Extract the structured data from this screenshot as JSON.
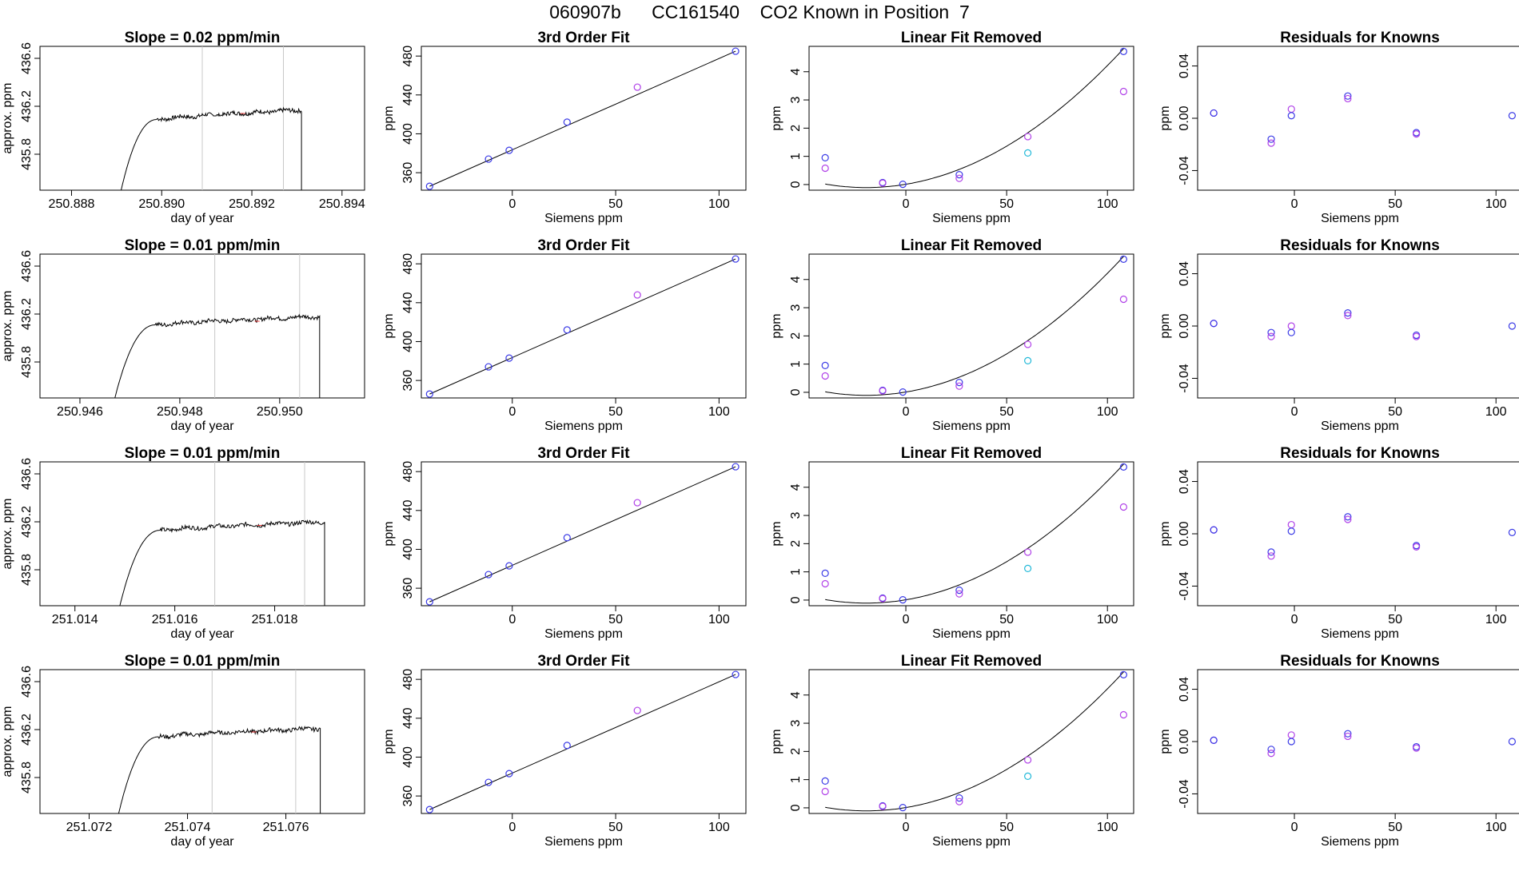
{
  "main_title": "060907b      CC161540    CO2 Known in Position  7",
  "colors": {
    "line": "#000000",
    "grid": "#c8c8c8",
    "blue": "#3a3ae6",
    "violet": "#b040e8",
    "cyan": "#20b8d8",
    "redmark": "#e03030"
  },
  "chart_data": [
    {
      "type": "line",
      "panel": "timeseries",
      "row": 1,
      "title": "Slope =  0.02  ppm/min",
      "xlabel": "day of year",
      "ylabel": "approx. ppm",
      "xlim": [
        250.8873,
        250.8945
      ],
      "ylim": [
        435.5,
        436.7
      ],
      "xticks": [
        250.888,
        250.89,
        250.892,
        250.894
      ],
      "xtick_labels": [
        "250.888",
        "250.890",
        "250.892",
        "250.894"
      ],
      "yticks": [
        435.8,
        436.2,
        436.6
      ],
      "ytick_labels": [
        "435.8",
        "436.2",
        "436.6"
      ],
      "vlines": [
        250.8909,
        250.8927
      ],
      "start": 250.8891,
      "end": 250.8931,
      "plateau": [
        436.09,
        436.14,
        436.17
      ],
      "trace_range": [
        435.5,
        436.17
      ]
    },
    {
      "type": "line",
      "panel": "timeseries",
      "row": 2,
      "title": "Slope =  0.01  ppm/min",
      "xlabel": "day of year",
      "ylabel": "approx. ppm",
      "xlim": [
        250.9452,
        250.9517
      ],
      "ylim": [
        435.5,
        436.7
      ],
      "xticks": [
        250.946,
        250.948,
        250.95
      ],
      "xtick_labels": [
        "250.946",
        "250.948",
        "250.950"
      ],
      "yticks": [
        435.8,
        436.2,
        436.6
      ],
      "ytick_labels": [
        "435.8",
        "436.2",
        "436.6"
      ],
      "vlines": [
        250.9487,
        250.9504
      ],
      "start": 250.9467,
      "end": 250.9508,
      "plateau": [
        436.11,
        436.14,
        436.18
      ],
      "trace_range": [
        435.5,
        436.18
      ]
    },
    {
      "type": "line",
      "panel": "timeseries",
      "row": 3,
      "title": "Slope =  0.01  ppm/min",
      "xlabel": "day of year",
      "ylabel": "approx. ppm",
      "xlim": [
        251.0133,
        251.0198
      ],
      "ylim": [
        435.5,
        436.7
      ],
      "xticks": [
        251.014,
        251.016,
        251.018
      ],
      "xtick_labels": [
        "251.014",
        "251.016",
        "251.018"
      ],
      "yticks": [
        435.8,
        436.2,
        436.6
      ],
      "ytick_labels": [
        "435.8",
        "436.2",
        "436.6"
      ],
      "vlines": [
        251.0168,
        251.0186
      ],
      "start": 251.0149,
      "end": 251.019,
      "plateau": [
        436.13,
        436.17,
        436.2
      ],
      "trace_range": [
        435.5,
        436.2
      ]
    },
    {
      "type": "line",
      "panel": "timeseries",
      "row": 4,
      "title": "Slope =  0.01  ppm/min",
      "xlabel": "day of year",
      "ylabel": "approx. ppm",
      "xlim": [
        251.071,
        251.0776
      ],
      "ylim": [
        435.5,
        436.7
      ],
      "xticks": [
        251.072,
        251.074,
        251.076
      ],
      "xtick_labels": [
        "251.072",
        "251.074",
        "251.076"
      ],
      "yticks": [
        435.8,
        436.2,
        436.6
      ],
      "ytick_labels": [
        "435.8",
        "436.2",
        "436.6"
      ],
      "vlines": [
        251.0745,
        251.0762
      ],
      "start": 251.0726,
      "end": 251.0767,
      "plateau": [
        436.14,
        436.18,
        436.21
      ],
      "trace_range": [
        435.5,
        436.21
      ]
    },
    {
      "type": "scatter",
      "panel": "fit",
      "row": 1,
      "title": "3rd Order Fit",
      "xlabel": "Siemens ppm",
      "ylabel": "ppm",
      "xlim": [
        -44,
        113
      ],
      "ylim": [
        342,
        490
      ],
      "xticks": [
        0,
        50,
        100
      ],
      "xtick_labels": [
        "0",
        "50",
        "100"
      ],
      "yticks": [
        360,
        400,
        440,
        480
      ],
      "ytick_labels": [
        "360",
        "400",
        "440",
        "480"
      ],
      "x": [
        -40,
        -11.5,
        -1.5,
        26.5,
        60.5,
        108
      ],
      "y": [
        346,
        374,
        383,
        412,
        448,
        485
      ],
      "colors": [
        "blue",
        "blue",
        "blue",
        "blue",
        "violet",
        "blue"
      ],
      "curve": {
        "kind": "line",
        "x": [
          -40,
          108
        ],
        "y": [
          346,
          485
        ]
      }
    },
    {
      "type": "scatter",
      "panel": "fit",
      "row": 2,
      "title": "3rd Order Fit",
      "xlabel": "Siemens ppm",
      "ylabel": "ppm",
      "xlim": [
        -44,
        113
      ],
      "ylim": [
        342,
        490
      ],
      "xticks": [
        0,
        50,
        100
      ],
      "xtick_labels": [
        "0",
        "50",
        "100"
      ],
      "yticks": [
        360,
        400,
        440,
        480
      ],
      "ytick_labels": [
        "360",
        "400",
        "440",
        "480"
      ],
      "x": [
        -40,
        -11.5,
        -1.5,
        26.5,
        60.5,
        108
      ],
      "y": [
        346,
        374,
        383,
        412,
        448,
        485
      ],
      "colors": [
        "blue",
        "blue",
        "blue",
        "blue",
        "violet",
        "blue"
      ],
      "curve": {
        "kind": "line",
        "x": [
          -40,
          108
        ],
        "y": [
          346,
          485
        ]
      }
    },
    {
      "type": "scatter",
      "panel": "fit",
      "row": 3,
      "title": "3rd Order Fit",
      "xlabel": "Siemens ppm",
      "ylabel": "ppm",
      "xlim": [
        -44,
        113
      ],
      "ylim": [
        342,
        490
      ],
      "xticks": [
        0,
        50,
        100
      ],
      "xtick_labels": [
        "0",
        "50",
        "100"
      ],
      "yticks": [
        360,
        400,
        440,
        480
      ],
      "ytick_labels": [
        "360",
        "400",
        "440",
        "480"
      ],
      "x": [
        -40,
        -11.5,
        -1.5,
        26.5,
        60.5,
        108
      ],
      "y": [
        346,
        374,
        383,
        412,
        448,
        485
      ],
      "colors": [
        "blue",
        "blue",
        "blue",
        "blue",
        "violet",
        "blue"
      ],
      "curve": {
        "kind": "line",
        "x": [
          -40,
          108
        ],
        "y": [
          346,
          485
        ]
      }
    },
    {
      "type": "scatter",
      "panel": "fit",
      "row": 4,
      "title": "3rd Order Fit",
      "xlabel": "Siemens ppm",
      "ylabel": "ppm",
      "xlim": [
        -44,
        113
      ],
      "ylim": [
        342,
        490
      ],
      "xticks": [
        0,
        50,
        100
      ],
      "xtick_labels": [
        "0",
        "50",
        "100"
      ],
      "yticks": [
        360,
        400,
        440,
        480
      ],
      "ytick_labels": [
        "360",
        "400",
        "440",
        "480"
      ],
      "x": [
        -40,
        -11.5,
        -1.5,
        26.5,
        60.5,
        108
      ],
      "y": [
        346,
        374,
        383,
        412,
        448,
        485
      ],
      "colors": [
        "blue",
        "blue",
        "blue",
        "blue",
        "violet",
        "blue"
      ],
      "curve": {
        "kind": "line",
        "x": [
          -40,
          108
        ],
        "y": [
          346,
          485
        ]
      }
    },
    {
      "type": "scatter",
      "panel": "linear-removed",
      "row": 1,
      "title": "Linear Fit Removed",
      "xlabel": "Siemens ppm",
      "ylabel": "ppm",
      "xlim": [
        -48,
        113
      ],
      "ylim": [
        -0.2,
        4.9
      ],
      "xticks": [
        0,
        50,
        100
      ],
      "xtick_labels": [
        "0",
        "50",
        "100"
      ],
      "yticks": [
        0,
        1,
        2,
        3,
        4
      ],
      "ytick_labels": [
        "0",
        "1",
        "2",
        "3",
        "4"
      ],
      "x": [
        -40,
        -40,
        -11.5,
        -11.5,
        -1.5,
        26.5,
        26.5,
        60.5,
        60.5,
        108,
        108
      ],
      "y": [
        0.95,
        0.58,
        0.07,
        0.05,
        0.01,
        0.35,
        0.22,
        1.7,
        1.12,
        4.72,
        3.3
      ],
      "colors": [
        "blue",
        "violet",
        "blue",
        "violet",
        "blue",
        "blue",
        "violet",
        "violet",
        "cyan",
        "blue",
        "violet"
      ],
      "curve": {
        "kind": "poly",
        "coef": [
          0.01,
          0.0119,
          0.000302
        ],
        "from": -40,
        "to": 108
      }
    },
    {
      "type": "scatter",
      "panel": "linear-removed",
      "row": 2,
      "title": "Linear Fit Removed",
      "xlabel": "Siemens ppm",
      "ylabel": "ppm",
      "xlim": [
        -48,
        113
      ],
      "ylim": [
        -0.2,
        4.9
      ],
      "xticks": [
        0,
        50,
        100
      ],
      "xtick_labels": [
        "0",
        "50",
        "100"
      ],
      "yticks": [
        0,
        1,
        2,
        3,
        4
      ],
      "ytick_labels": [
        "0",
        "1",
        "2",
        "3",
        "4"
      ],
      "x": [
        -40,
        -40,
        -11.5,
        -11.5,
        -1.5,
        26.5,
        26.5,
        60.5,
        60.5,
        108,
        108
      ],
      "y": [
        0.95,
        0.58,
        0.07,
        0.05,
        0.01,
        0.35,
        0.22,
        1.7,
        1.12,
        4.72,
        3.3
      ],
      "colors": [
        "blue",
        "violet",
        "blue",
        "violet",
        "blue",
        "blue",
        "violet",
        "violet",
        "cyan",
        "blue",
        "violet"
      ],
      "curve": {
        "kind": "poly",
        "coef": [
          0.01,
          0.0119,
          0.000302
        ],
        "from": -40,
        "to": 108
      }
    },
    {
      "type": "scatter",
      "panel": "linear-removed",
      "row": 3,
      "title": "Linear Fit Removed",
      "xlabel": "Siemens ppm",
      "ylabel": "ppm",
      "xlim": [
        -48,
        113
      ],
      "ylim": [
        -0.2,
        4.9
      ],
      "xticks": [
        0,
        50,
        100
      ],
      "xtick_labels": [
        "0",
        "50",
        "100"
      ],
      "yticks": [
        0,
        1,
        2,
        3,
        4
      ],
      "ytick_labels": [
        "0",
        "1",
        "2",
        "3",
        "4"
      ],
      "x": [
        -40,
        -40,
        -11.5,
        -11.5,
        -1.5,
        26.5,
        26.5,
        60.5,
        60.5,
        108,
        108
      ],
      "y": [
        0.95,
        0.58,
        0.07,
        0.05,
        0.01,
        0.35,
        0.22,
        1.7,
        1.12,
        4.72,
        3.3
      ],
      "colors": [
        "blue",
        "violet",
        "blue",
        "violet",
        "blue",
        "blue",
        "violet",
        "violet",
        "cyan",
        "blue",
        "violet"
      ],
      "curve": {
        "kind": "poly",
        "coef": [
          0.01,
          0.0119,
          0.000302
        ],
        "from": -40,
        "to": 108
      }
    },
    {
      "type": "scatter",
      "panel": "linear-removed",
      "row": 4,
      "title": "Linear Fit Removed",
      "xlabel": "Siemens ppm",
      "ylabel": "ppm",
      "xlim": [
        -48,
        113
      ],
      "ylim": [
        -0.2,
        4.9
      ],
      "xticks": [
        0,
        50,
        100
      ],
      "xtick_labels": [
        "0",
        "50",
        "100"
      ],
      "yticks": [
        0,
        1,
        2,
        3,
        4
      ],
      "ytick_labels": [
        "0",
        "1",
        "2",
        "3",
        "4"
      ],
      "x": [
        -40,
        -40,
        -11.5,
        -11.5,
        -1.5,
        26.5,
        26.5,
        60.5,
        60.5,
        108,
        108
      ],
      "y": [
        0.95,
        0.58,
        0.07,
        0.05,
        0.01,
        0.35,
        0.22,
        1.7,
        1.12,
        4.72,
        3.3
      ],
      "colors": [
        "blue",
        "violet",
        "blue",
        "violet",
        "blue",
        "blue",
        "violet",
        "violet",
        "cyan",
        "blue",
        "violet"
      ],
      "curve": {
        "kind": "poly",
        "coef": [
          0.01,
          0.0119,
          0.000302
        ],
        "from": -40,
        "to": 108
      }
    },
    {
      "type": "scatter",
      "panel": "residuals",
      "row": 1,
      "title": "Residuals for Knowns",
      "xlabel": "Siemens ppm",
      "ylabel": "ppm",
      "xlim": [
        -48,
        113
      ],
      "ylim": [
        -0.055,
        0.055
      ],
      "xticks": [
        0,
        50,
        100
      ],
      "xtick_labels": [
        "0",
        "50",
        "100"
      ],
      "yticks": [
        -0.04,
        0.0,
        0.04
      ],
      "ytick_labels": [
        "-0.04",
        "0.00",
        "0.04"
      ],
      "x": [
        -40,
        -40,
        -11.5,
        -11.5,
        -1.5,
        -1.5,
        26.5,
        26.5,
        60.5,
        60.5,
        108
      ],
      "y": [
        0.004,
        0.004,
        -0.016,
        -0.019,
        0.007,
        0.002,
        0.017,
        0.015,
        -0.011,
        -0.012,
        0.002
      ],
      "colors": [
        "violet",
        "blue",
        "blue",
        "violet",
        "violet",
        "blue",
        "blue",
        "violet",
        "blue",
        "violet",
        "blue"
      ]
    },
    {
      "type": "scatter",
      "panel": "residuals",
      "row": 2,
      "title": "Residuals for Knowns",
      "xlabel": "Siemens ppm",
      "ylabel": "ppm",
      "xlim": [
        -48,
        113
      ],
      "ylim": [
        -0.055,
        0.055
      ],
      "xticks": [
        0,
        50,
        100
      ],
      "xtick_labels": [
        "0",
        "50",
        "100"
      ],
      "yticks": [
        -0.04,
        0.0,
        0.04
      ],
      "ytick_labels": [
        "-0.04",
        "0.00",
        "0.04"
      ],
      "x": [
        -40,
        -40,
        -11.5,
        -11.5,
        -1.5,
        -1.5,
        26.5,
        26.5,
        60.5,
        60.5,
        108
      ],
      "y": [
        0.002,
        0.002,
        -0.005,
        -0.008,
        0.0,
        -0.005,
        0.01,
        0.008,
        -0.007,
        -0.008,
        0.0
      ],
      "colors": [
        "violet",
        "blue",
        "blue",
        "violet",
        "violet",
        "blue",
        "blue",
        "violet",
        "blue",
        "violet",
        "blue"
      ]
    },
    {
      "type": "scatter",
      "panel": "residuals",
      "row": 3,
      "title": "Residuals for Knowns",
      "xlabel": "Siemens ppm",
      "ylabel": "ppm",
      "xlim": [
        -48,
        113
      ],
      "ylim": [
        -0.055,
        0.055
      ],
      "xticks": [
        0,
        50,
        100
      ],
      "xtick_labels": [
        "0",
        "50",
        "100"
      ],
      "yticks": [
        -0.04,
        0.0,
        0.04
      ],
      "ytick_labels": [
        "-0.04",
        "0.00",
        "0.04"
      ],
      "x": [
        -40,
        -40,
        -11.5,
        -11.5,
        -1.5,
        -1.5,
        26.5,
        26.5,
        60.5,
        60.5,
        108
      ],
      "y": [
        0.003,
        0.003,
        -0.014,
        -0.017,
        0.007,
        0.002,
        0.013,
        0.011,
        -0.009,
        -0.01,
        0.001
      ],
      "colors": [
        "violet",
        "blue",
        "blue",
        "violet",
        "violet",
        "blue",
        "blue",
        "violet",
        "blue",
        "violet",
        "blue"
      ]
    },
    {
      "type": "scatter",
      "panel": "residuals",
      "row": 4,
      "title": "Residuals for Knowns",
      "xlabel": "Siemens ppm",
      "ylabel": "ppm",
      "xlim": [
        -48,
        113
      ],
      "ylim": [
        -0.055,
        0.055
      ],
      "xticks": [
        0,
        50,
        100
      ],
      "xtick_labels": [
        "0",
        "50",
        "100"
      ],
      "yticks": [
        -0.04,
        0.0,
        0.04
      ],
      "ytick_labels": [
        "-0.04",
        "0.00",
        "0.04"
      ],
      "x": [
        -40,
        -40,
        -11.5,
        -11.5,
        -1.5,
        -1.5,
        26.5,
        26.5,
        60.5,
        60.5,
        108
      ],
      "y": [
        0.001,
        0.001,
        -0.006,
        -0.009,
        0.005,
        0.0,
        0.006,
        0.004,
        -0.004,
        -0.005,
        0.0
      ],
      "colors": [
        "violet",
        "blue",
        "blue",
        "violet",
        "violet",
        "blue",
        "blue",
        "violet",
        "blue",
        "violet",
        "blue"
      ]
    }
  ]
}
